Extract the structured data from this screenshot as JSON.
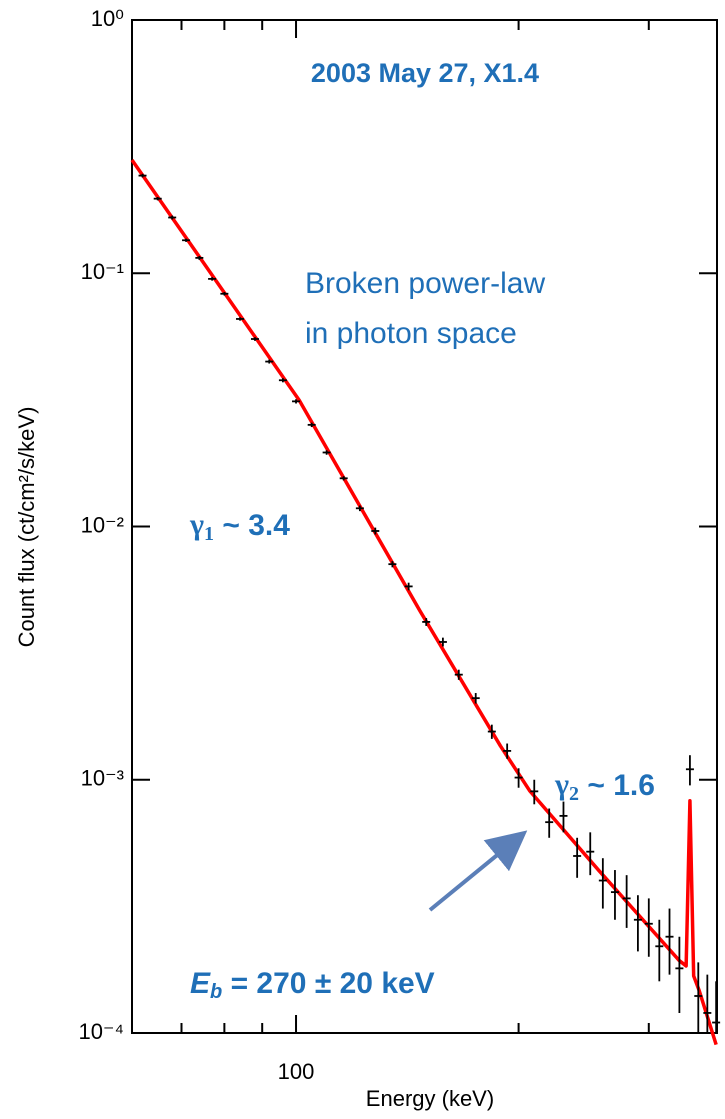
{
  "chart_data": {
    "type": "line",
    "title": "2003 May 27, X1.4",
    "xlabel": "Energy (keV)",
    "ylabel": "Count flux (ct/cm²/s/keV)",
    "xlog": true,
    "ylog": true,
    "xlim": [
      60,
      371
    ],
    "ylim": [
      0.0001,
      1
    ],
    "xticks": [
      100
    ],
    "xminor": [
      70,
      80,
      90,
      200,
      300
    ],
    "yticks": [
      {
        "value": 0.0001,
        "label": "10⁻⁴"
      },
      {
        "value": 0.001,
        "label": "10⁻³"
      },
      {
        "value": 0.01,
        "label": "10⁻²"
      },
      {
        "value": 0.1,
        "label": "10⁻¹"
      },
      {
        "value": 1,
        "label": "10⁰"
      }
    ],
    "annotations": {
      "model": [
        "Broken power-law",
        "in photon space"
      ],
      "gamma1": {
        "symbol": "γ",
        "sub": "1",
        "text": " ~ 3.4"
      },
      "gamma2": {
        "symbol": "γ",
        "sub": "2",
        "text": " ~ 1.6"
      },
      "break": {
        "symbol": "E",
        "sub": "b",
        "text": " = 270 ± 20 keV"
      }
    },
    "series": [
      {
        "kind": "fit",
        "color": "#ff0000",
        "x": [
          60,
          101,
          147,
          189,
          207,
          257,
          330,
          337,
          341,
          345,
          351,
          370
        ],
        "values": [
          0.28,
          0.0315,
          0.00466,
          0.00136,
          0.000905,
          0.000437,
          0.000193,
          0.000184,
          0.000826,
          0.000168,
          0.000147,
          9e-05
        ]
      },
      {
        "kind": "data",
        "color": "#000000",
        "x": [
          62,
          65,
          68,
          71,
          74,
          77,
          80,
          84,
          88,
          92,
          96,
          100,
          105,
          110,
          116,
          122,
          128,
          135,
          142,
          150,
          158,
          166,
          175,
          184,
          193,
          200,
          210,
          220,
          230,
          240,
          250,
          260,
          270,
          280,
          290,
          300,
          310,
          320,
          330,
          341,
          350,
          360,
          370
        ],
        "values": [
          0.243,
          0.197,
          0.166,
          0.135,
          0.115,
          0.095,
          0.083,
          0.066,
          0.055,
          0.0448,
          0.0378,
          0.0312,
          0.0252,
          0.0196,
          0.0155,
          0.0118,
          0.0096,
          0.0071,
          0.0058,
          0.0042,
          0.0035,
          0.0026,
          0.0021,
          0.00155,
          0.0013,
          0.00102,
          0.0009,
          0.00068,
          0.00072,
          0.0005,
          0.00052,
          0.0004,
          0.00036,
          0.00034,
          0.00028,
          0.00027,
          0.00022,
          0.00024,
          0.00018,
          0.0011,
          0.00014,
          0.00012,
          0.00011
        ],
        "errors": [
          0.004,
          0.003,
          0.003,
          0.002,
          0.002,
          0.0015,
          0.0013,
          0.001,
          0.0009,
          0.0008,
          0.0007,
          0.0006,
          0.0005,
          0.0004,
          0.0003,
          0.0003,
          0.0003,
          0.0002,
          0.0002,
          0.00015,
          0.00014,
          0.00012,
          0.0001,
          0.0001,
          9e-05,
          9e-05,
          0.0001,
          9e-05,
          0.0001,
          9e-05,
          0.0001,
          9e-05,
          8e-05,
          8e-05,
          7e-05,
          7e-05,
          6e-05,
          7e-05,
          6e-05,
          0.00015,
          5e-05,
          5e-05,
          5e-05
        ]
      }
    ]
  }
}
